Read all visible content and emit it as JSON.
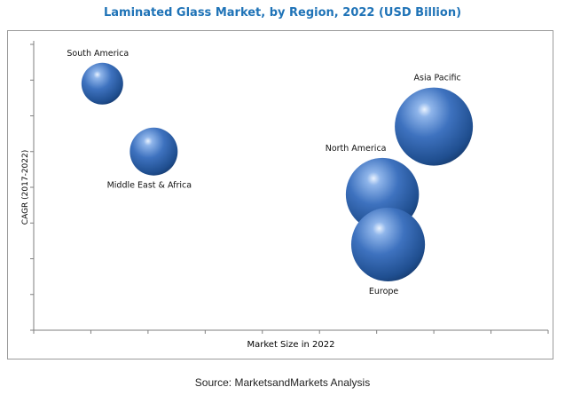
{
  "chart_data": {
    "type": "bubble",
    "title": "Laminated Glass Market, by Region, 2022 (USD Billion)",
    "xlabel": "Market Size in 2022",
    "ylabel": "CAGR (2017-2022)",
    "x_tick_labels": [],
    "y_tick_labels": [],
    "grid": false,
    "legend": "none",
    "bubble_color": "#3a6fbf",
    "series": [
      {
        "name": "South America",
        "x": 1.2,
        "y": 6.9,
        "size": 1.0
      },
      {
        "name": "Middle East & Africa",
        "x": 2.1,
        "y": 5.0,
        "size": 1.5
      },
      {
        "name": "North America",
        "x": 6.1,
        "y": 3.8,
        "size": 4.6
      },
      {
        "name": "Europe",
        "x": 6.2,
        "y": 2.4,
        "size": 4.7
      },
      {
        "name": "Asia Pacific",
        "x": 7.0,
        "y": 5.7,
        "size": 5.4
      }
    ]
  },
  "source": "Source: MarketsandMarkets Analysis"
}
